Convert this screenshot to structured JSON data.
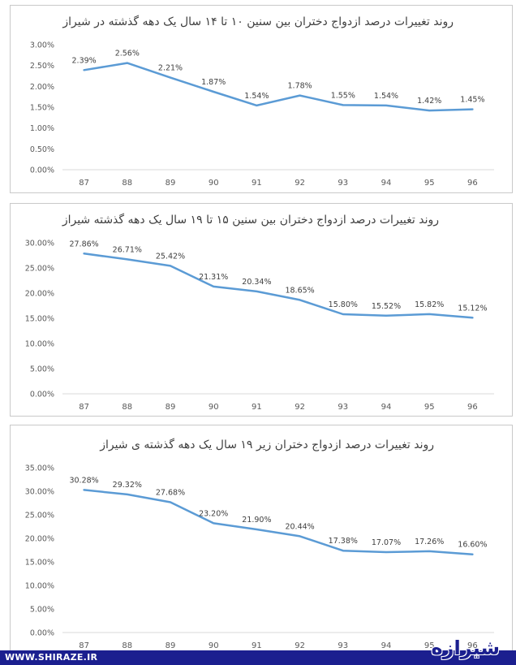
{
  "chart_data": [
    {
      "type": "line",
      "title": "روند تغییرات درصد ازدواج دختران بین سنین ۱۰ تا ۱۴ سال یک دهه گذشته در شیراز",
      "categories": [
        "87",
        "88",
        "89",
        "90",
        "91",
        "92",
        "93",
        "94",
        "95",
        "96"
      ],
      "values": [
        2.39,
        2.56,
        2.21,
        1.87,
        1.54,
        1.78,
        1.55,
        1.54,
        1.42,
        1.45
      ],
      "data_labels": [
        "2.39%",
        "2.56%",
        "2.21%",
        "1.87%",
        "1.54%",
        "1.78%",
        "1.55%",
        "1.54%",
        "1.42%",
        "1.45%"
      ],
      "y_ticks": [
        "0.00%",
        "0.50%",
        "1.00%",
        "1.50%",
        "2.00%",
        "2.50%",
        "3.00%"
      ],
      "ylim": [
        0,
        3
      ],
      "grid": false,
      "color": "#5b9bd5"
    },
    {
      "type": "line",
      "title": "روند تغییرات درصد ازدواج دختران بین سنین ۱۵ تا ۱۹ سال یک دهه گذشته شیراز",
      "categories": [
        "87",
        "88",
        "89",
        "90",
        "91",
        "92",
        "93",
        "94",
        "95",
        "96"
      ],
      "values": [
        27.86,
        26.71,
        25.42,
        21.31,
        20.34,
        18.65,
        15.8,
        15.52,
        15.82,
        15.12
      ],
      "data_labels": [
        "27.86%",
        "26.71%",
        "25.42%",
        "21.31%",
        "20.34%",
        "18.65%",
        "15.80%",
        "15.52%",
        "15.82%",
        "15.12%"
      ],
      "y_ticks": [
        "0.00%",
        "5.00%",
        "10.00%",
        "15.00%",
        "20.00%",
        "25.00%",
        "30.00%"
      ],
      "ylim": [
        0,
        30
      ],
      "grid": false,
      "color": "#5b9bd5"
    },
    {
      "type": "line",
      "title": "روند تغییرات درصد ازدواج دختران زیر ۱۹ سال یک دهه گذشته ی شیراز",
      "categories": [
        "87",
        "88",
        "89",
        "90",
        "91",
        "92",
        "93",
        "94",
        "95",
        "96"
      ],
      "values": [
        30.28,
        29.32,
        27.68,
        23.2,
        21.9,
        20.44,
        17.38,
        17.07,
        17.26,
        16.6
      ],
      "data_labels": [
        "30.28%",
        "29.32%",
        "27.68%",
        "23.20%",
        "21.90%",
        "20.44%",
        "17.38%",
        "17.07%",
        "17.26%",
        "16.60%"
      ],
      "y_ticks": [
        "0.00%",
        "5.00%",
        "10.00%",
        "15.00%",
        "20.00%",
        "25.00%",
        "30.00%",
        "35.00%"
      ],
      "ylim": [
        0,
        35
      ],
      "grid": false,
      "color": "#5b9bd5"
    }
  ],
  "footer": {
    "url": "WWW.SHIRAZE.IR",
    "logo": "شیرازه",
    "bar_color": "#1b1f8f"
  }
}
